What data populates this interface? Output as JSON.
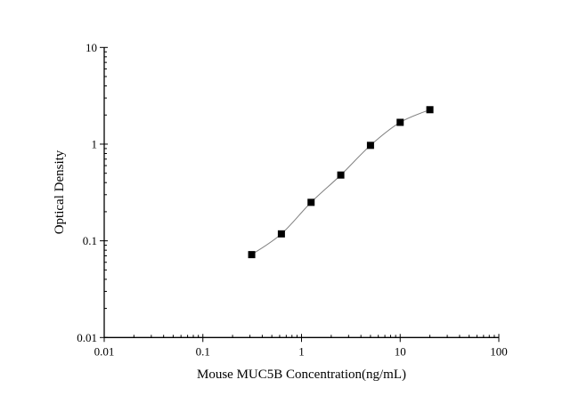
{
  "chart_data": {
    "type": "scatter",
    "title": "",
    "xlabel": "Mouse MUC5B Concentration(ng/mL)",
    "ylabel": "Optical Density",
    "x_scale": "log",
    "y_scale": "log",
    "xlim": [
      0.01,
      100
    ],
    "ylim": [
      0.01,
      10
    ],
    "x_ticks": [
      "0.01",
      "0.1",
      "1",
      "10",
      "100"
    ],
    "y_ticks": [
      "0.01",
      "0.1",
      "1",
      "10"
    ],
    "grid": false,
    "legend": "none",
    "fit_curve": true,
    "marker": "square",
    "colors": {
      "marker": "#000000",
      "curve": "#808080",
      "axis": "#000000"
    },
    "series": [
      {
        "x": [
          0.3125,
          0.625,
          1.25,
          2.5,
          5,
          10,
          20
        ],
        "y": [
          0.072,
          0.118,
          0.25,
          0.479,
          0.971,
          1.68,
          2.27
        ]
      }
    ]
  }
}
